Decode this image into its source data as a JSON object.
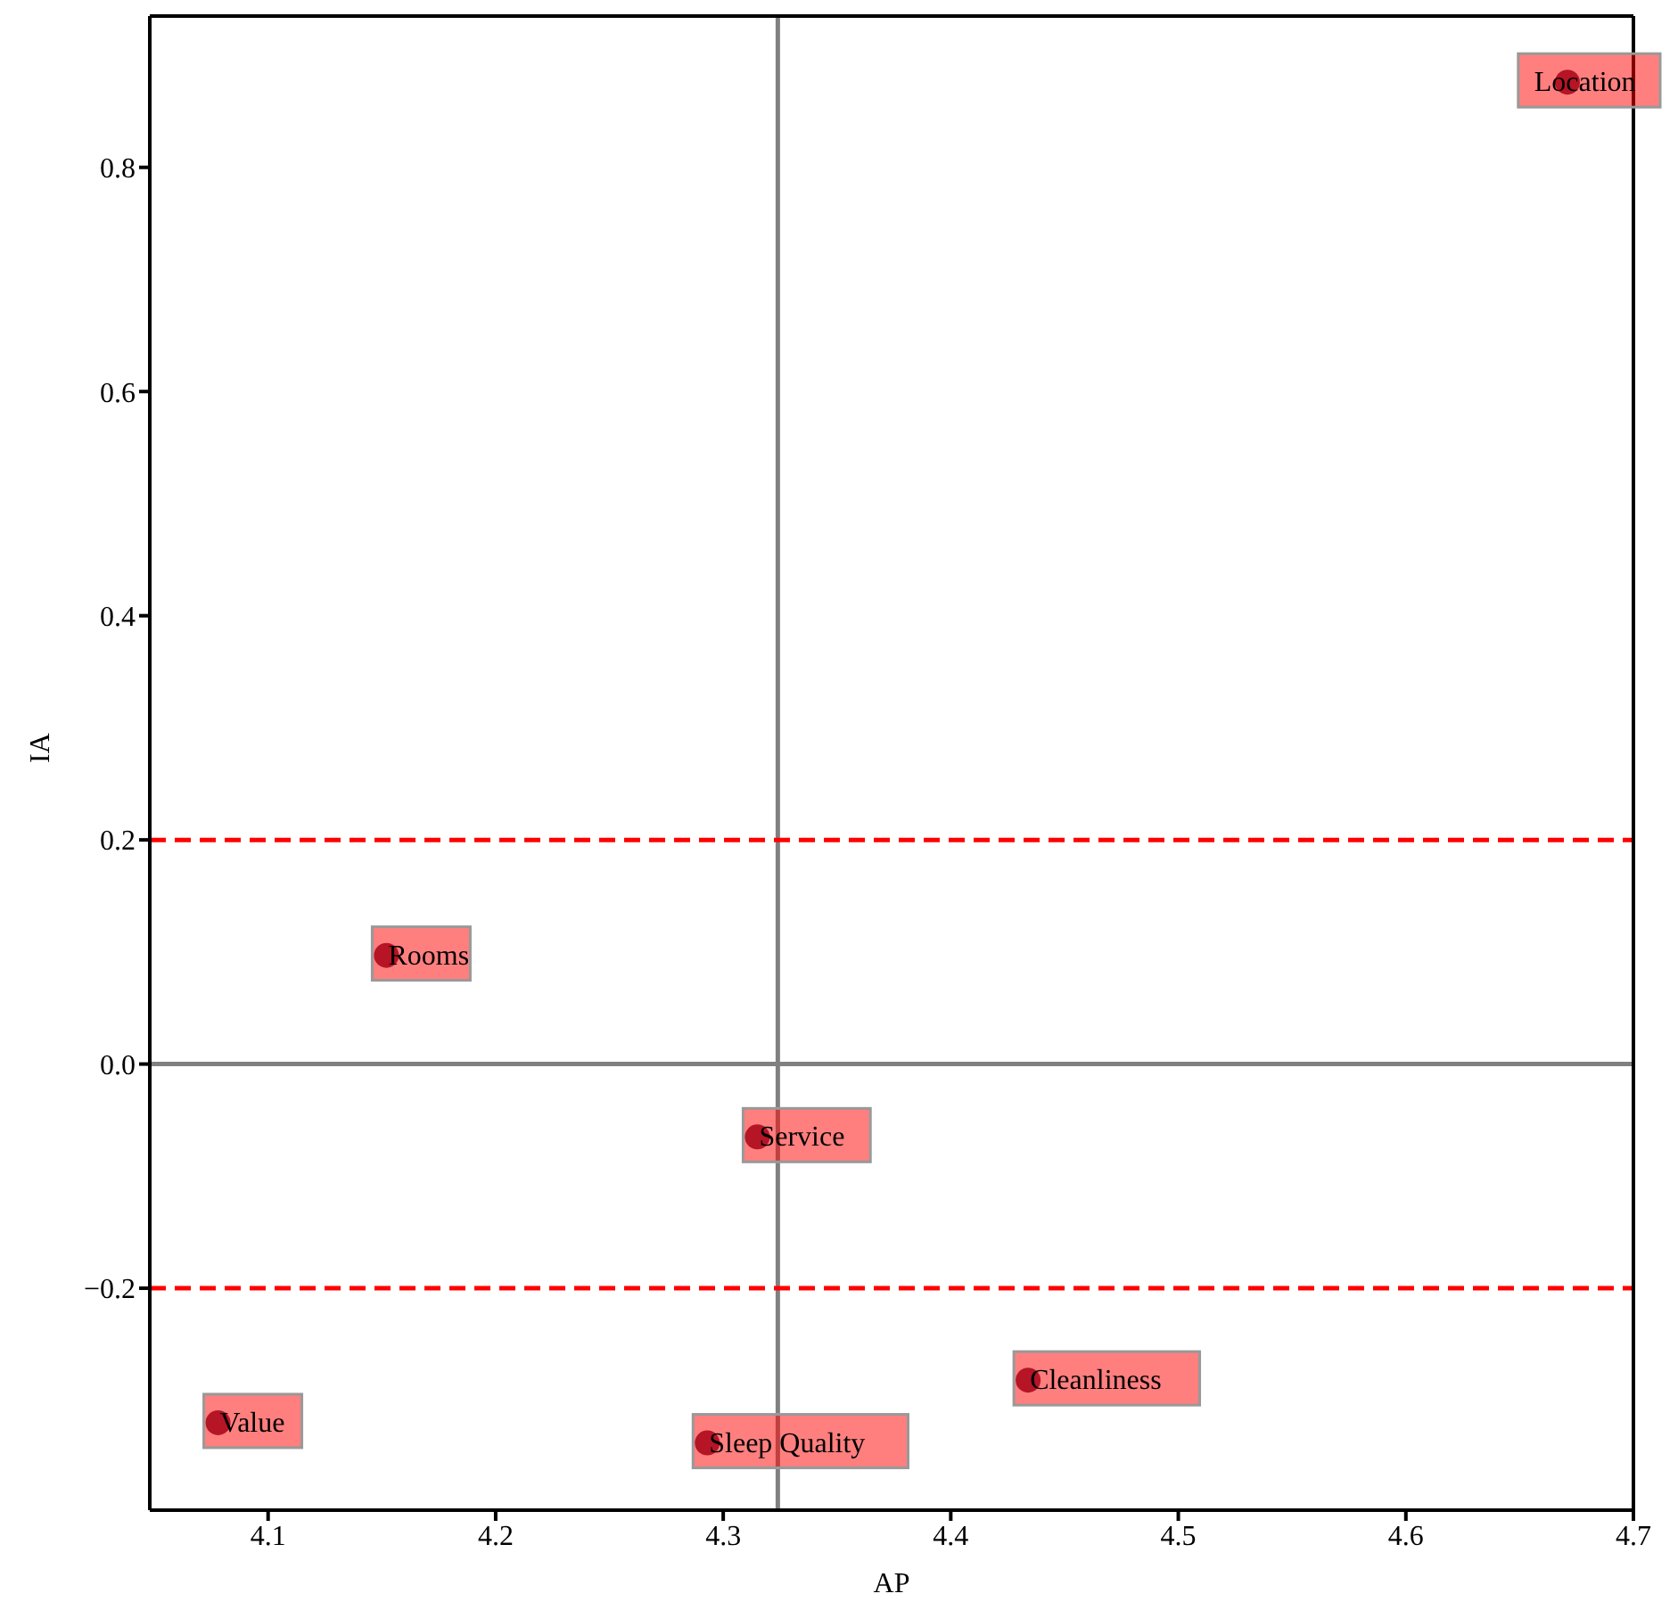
{
  "chart_data": {
    "type": "scatter",
    "xlabel": "AP",
    "ylabel": "IA",
    "x": [
      4.671,
      4.152,
      4.315,
      4.434,
      4.078,
      4.293
    ],
    "values": [
      0.876,
      0.097,
      -0.065,
      -0.282,
      -0.32,
      -0.338
    ],
    "color": "#6b2a4a",
    "marker": "circle",
    "xlim": [
      4.048,
      4.7
    ],
    "xticks": [
      4.1,
      4.2,
      4.3,
      4.4,
      4.5,
      4.6,
      4.7
    ],
    "ylim": [
      -0.398,
      0.935
    ],
    "yticks": [
      -0.2,
      {
        "value": 0,
        "label": "0.0"
      },
      0.2,
      0.4,
      0.6,
      0.8
    ],
    "ref_lines": [
      {
        "axis": "x",
        "value": 4.324,
        "color": "#808080",
        "line_style": "solid"
      },
      {
        "axis": "y",
        "value": 0,
        "color": "#808080",
        "line_style": "solid"
      },
      {
        "axis": "y",
        "value": 0.2,
        "color": "#ff0000",
        "line_style": "dashed"
      },
      {
        "axis": "y",
        "value": -0.2,
        "color": "#ff0000",
        "line_style": "dashed"
      }
    ],
    "annotations": [
      {
        "text": "Location",
        "x": 4.671,
        "y": 0.876
      },
      {
        "text": "Rooms",
        "x": 4.152,
        "y": 0.097
      },
      {
        "text": "Service",
        "x": 4.315,
        "y": -0.065
      },
      {
        "text": "Cleanliness",
        "x": 4.434,
        "y": -0.282
      },
      {
        "text": "Value",
        "x": 4.078,
        "y": -0.32
      },
      {
        "text": "Sleep Quality",
        "x": 4.293,
        "y": -0.338
      }
    ]
  }
}
